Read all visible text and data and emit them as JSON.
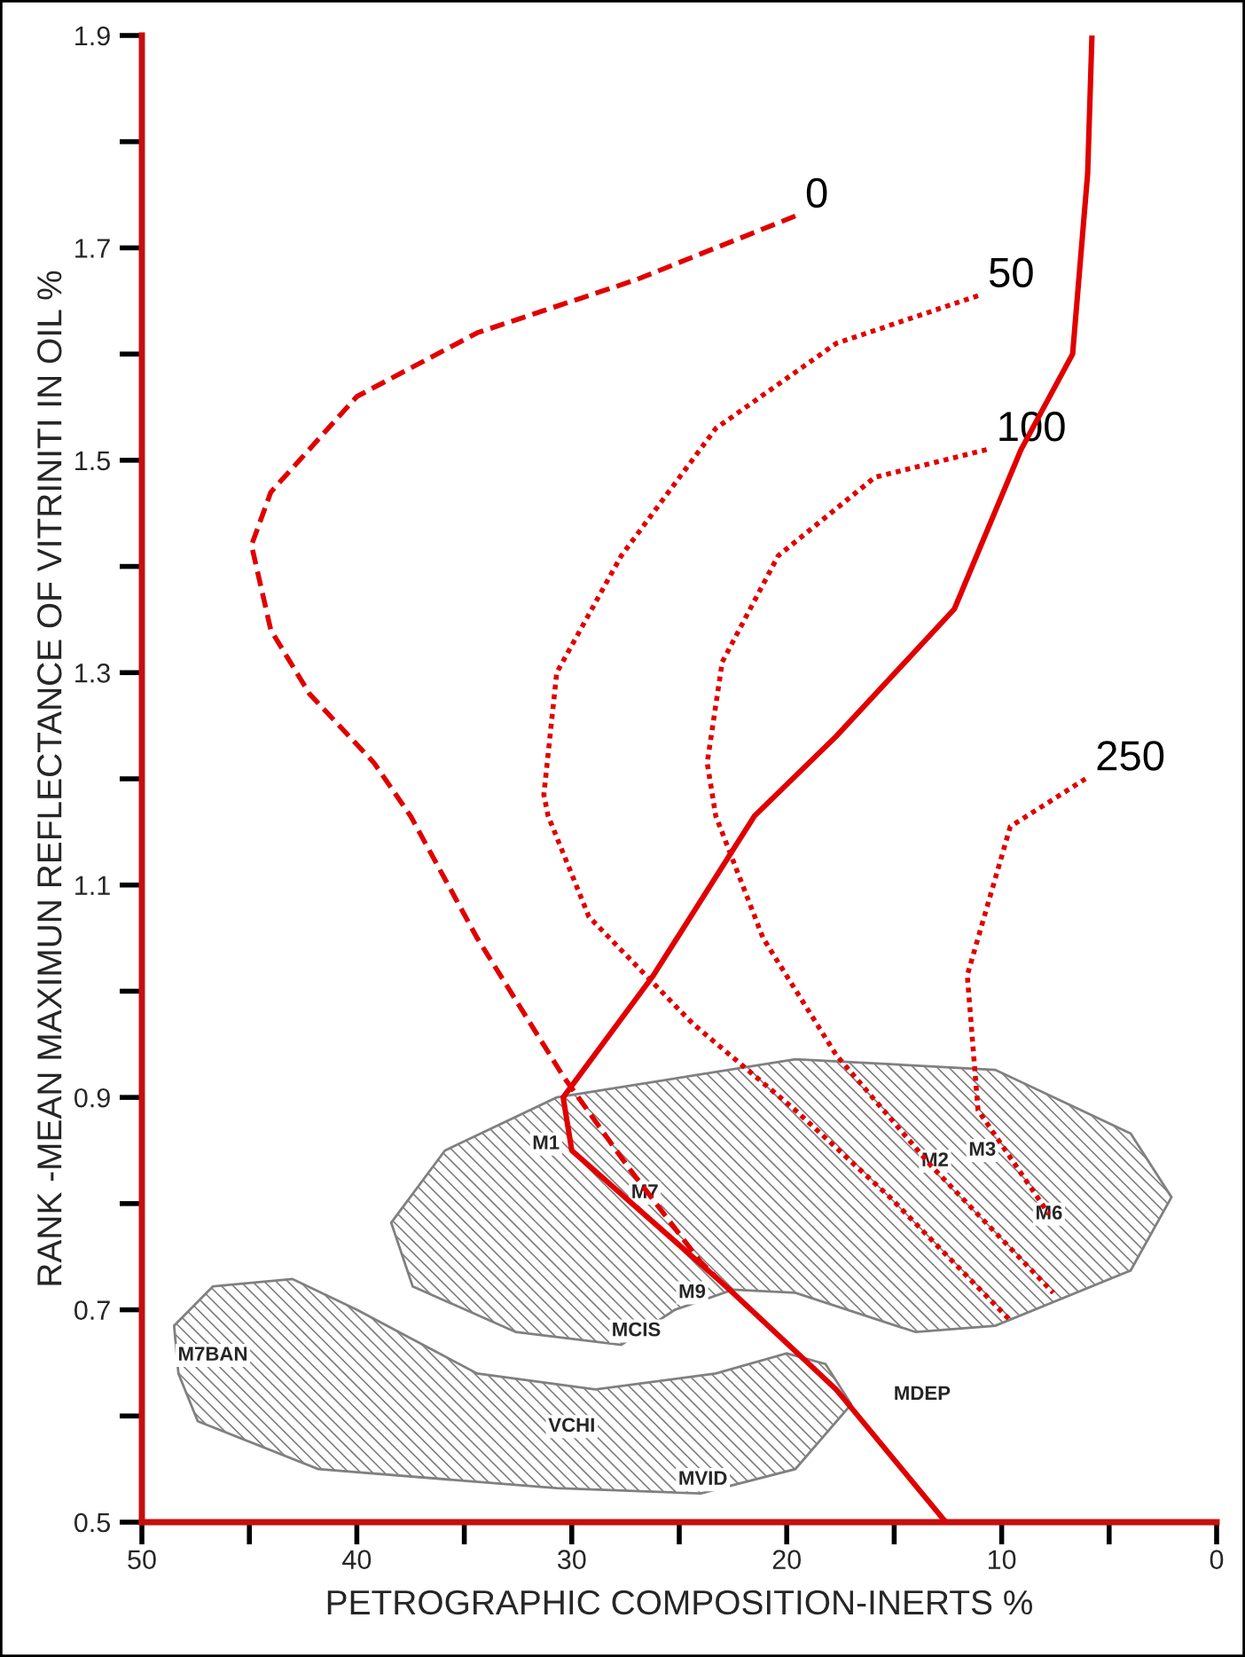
{
  "chart_data": {
    "type": "line",
    "xlabel": "PETROGRAPHIC COMPOSITION-INERTS %",
    "ylabel": "RANK -MEAN MAXIMUN REFLECTANCE OF VITRINITI IN OIL %",
    "xlim": [
      50,
      0
    ],
    "ylim": [
      0.5,
      1.9
    ],
    "xticks": [
      50,
      {
        "value": 45,
        "label": null
      },
      40,
      {
        "value": 35,
        "label": null
      },
      30,
      {
        "value": 25,
        "label": null
      },
      20,
      {
        "value": 15,
        "label": null
      },
      10,
      {
        "value": 5,
        "label": null
      },
      0
    ],
    "yticks": [
      0.5,
      {
        "value": 0.6,
        "label": null
      },
      0.7,
      {
        "value": 0.8,
        "label": null
      },
      0.9,
      {
        "value": 1.0,
        "label": null
      },
      1.1,
      {
        "value": 1.2,
        "label": null
      },
      1.3,
      {
        "value": 1.4,
        "label": null
      },
      1.5,
      {
        "value": 1.6,
        "label": null
      },
      1.7,
      {
        "value": 1.8,
        "label": null
      },
      1.9
    ],
    "grid": false,
    "legend": false,
    "marker": "none",
    "series": [
      {
        "type": "area",
        "color": "#808080",
        "x": [
          38.4,
          35.9,
          30.7,
          19.6,
          10.3,
          4.0,
          2.1,
          4.0,
          10.3,
          14.0,
          19.6,
          22.5,
          25.2,
          27.7,
          32.6,
          37.4
        ],
        "values": [
          0.782,
          0.85,
          0.9,
          0.936,
          0.926,
          0.866,
          0.806,
          0.737,
          0.685,
          0.679,
          0.716,
          0.719,
          0.7,
          0.667,
          0.679,
          0.722
        ]
      },
      {
        "type": "area",
        "color": "#808080",
        "x": [
          48.5,
          46.7,
          43.0,
          40.0,
          34.4,
          28.9,
          23.3,
          20.0,
          18.2,
          17.0,
          19.6,
          24.0,
          30.7,
          41.8,
          47.4,
          48.3
        ],
        "values": [
          0.685,
          0.722,
          0.729,
          0.7,
          0.64,
          0.625,
          0.64,
          0.659,
          0.649,
          0.611,
          0.55,
          0.527,
          0.532,
          0.55,
          0.595,
          0.64
        ]
      },
      {
        "color": "#e00000",
        "line_style": "solid",
        "x": [
          5.8,
          6.0,
          6.7,
          9.1,
          12.2,
          17.7,
          21.5,
          26.2,
          30.4,
          30.0,
          23.1,
          22.5,
          17.7,
          12.6
        ],
        "values": [
          1.9,
          1.77,
          1.6,
          1.51,
          1.36,
          1.24,
          1.165,
          1.015,
          0.9,
          0.85,
          0.727,
          0.716,
          0.625,
          0.5
        ]
      },
      {
        "name": "0",
        "color": "#e00000",
        "line_style": "dashed",
        "x": [
          19.6,
          27.0,
          34.4,
          40.0,
          44.0,
          44.9,
          44.0,
          42.2,
          39.2,
          37.5,
          34.4,
          30.4,
          27.4,
          24.0,
          23.1
        ],
        "values": [
          1.73,
          1.67,
          1.62,
          1.56,
          1.47,
          1.42,
          1.34,
          1.28,
          1.215,
          1.165,
          1.05,
          0.92,
          0.835,
          0.745,
          0.727
        ]
      },
      {
        "name": "50",
        "color": "#e00000",
        "line_style": "dotted",
        "x": [
          11.1,
          17.7,
          23.3,
          27.7,
          30.7,
          31.3,
          31.1,
          29.2,
          24.4,
          19.6,
          15.2,
          9.6
        ],
        "values": [
          1.655,
          1.61,
          1.53,
          1.41,
          1.3,
          1.185,
          1.165,
          1.07,
          0.97,
          0.888,
          0.806,
          0.69
        ]
      },
      {
        "name": "100",
        "color": "#e00000",
        "line_style": "dotted",
        "x": [
          10.7,
          15.9,
          20.4,
          23.0,
          23.7,
          23.3,
          21.1,
          17.7,
          13.3,
          7.6
        ],
        "values": [
          1.51,
          1.484,
          1.41,
          1.31,
          1.215,
          1.165,
          1.05,
          0.94,
          0.836,
          0.716
        ]
      },
      {
        "name": "250",
        "color": "#e00000",
        "line_style": "dotted",
        "x": [
          6.1,
          9.6,
          11.6,
          11.1,
          7.8
        ],
        "values": [
          1.2,
          1.155,
          1.015,
          0.888,
          0.79
        ]
      }
    ],
    "annotations": [
      {
        "text": "M1",
        "x": 31.2,
        "y": 0.856
      },
      {
        "text": "M7",
        "x": 26.6,
        "y": 0.81
      },
      {
        "text": "M9",
        "x": 24.4,
        "y": 0.716
      },
      {
        "text": "MCIS",
        "x": 27.0,
        "y": 0.68
      },
      {
        "text": "M2",
        "x": 13.1,
        "y": 0.84
      },
      {
        "text": "M3",
        "x": 10.9,
        "y": 0.85
      },
      {
        "text": "M6",
        "x": 7.8,
        "y": 0.79
      },
      {
        "text": "M7BAN",
        "x": 46.7,
        "y": 0.657
      },
      {
        "text": "VCHI",
        "x": 30.0,
        "y": 0.59
      },
      {
        "text": "MVID",
        "x": 23.9,
        "y": 0.54
      },
      {
        "text": "MDEP",
        "x": 13.7,
        "y": 0.62
      }
    ]
  }
}
